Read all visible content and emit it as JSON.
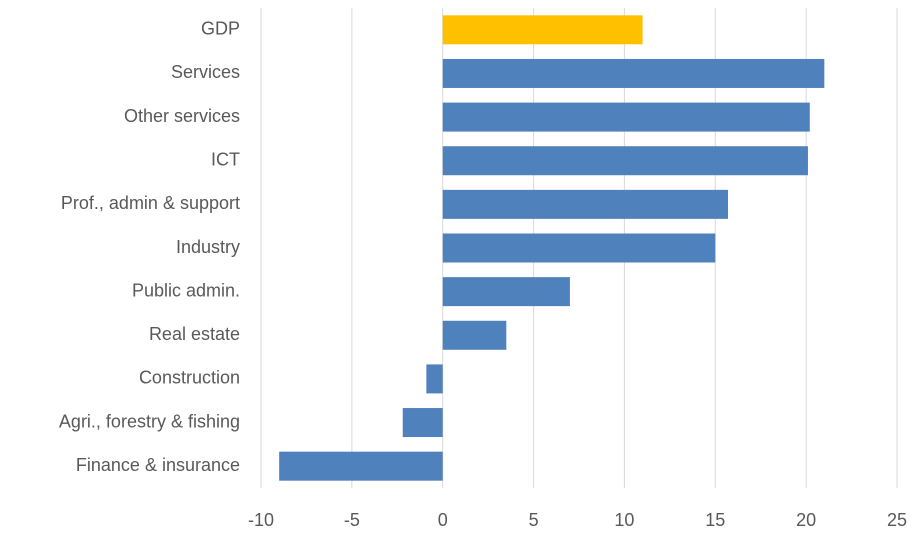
{
  "chart_data": {
    "type": "hbar",
    "categories": [
      "GDP",
      "Services",
      "Other services",
      "ICT",
      "Prof., admin & support",
      "Industry",
      "Public admin.",
      "Real estate",
      "Construction",
      "Agri., forestry & fishing",
      "Finance & insurance"
    ],
    "values": [
      11,
      21,
      20.2,
      20.1,
      15.7,
      15,
      7,
      3.5,
      -0.9,
      -2.2,
      -9
    ],
    "colors": [
      "#ffc000",
      "#4f81bd",
      "#4f81bd",
      "#4f81bd",
      "#4f81bd",
      "#4f81bd",
      "#4f81bd",
      "#4f81bd",
      "#4f81bd",
      "#4f81bd",
      "#4f81bd"
    ],
    "xlim": [
      -10,
      25
    ],
    "xticks": [
      -10,
      -5,
      0,
      5,
      10,
      15,
      20,
      25
    ],
    "grid": true
  }
}
